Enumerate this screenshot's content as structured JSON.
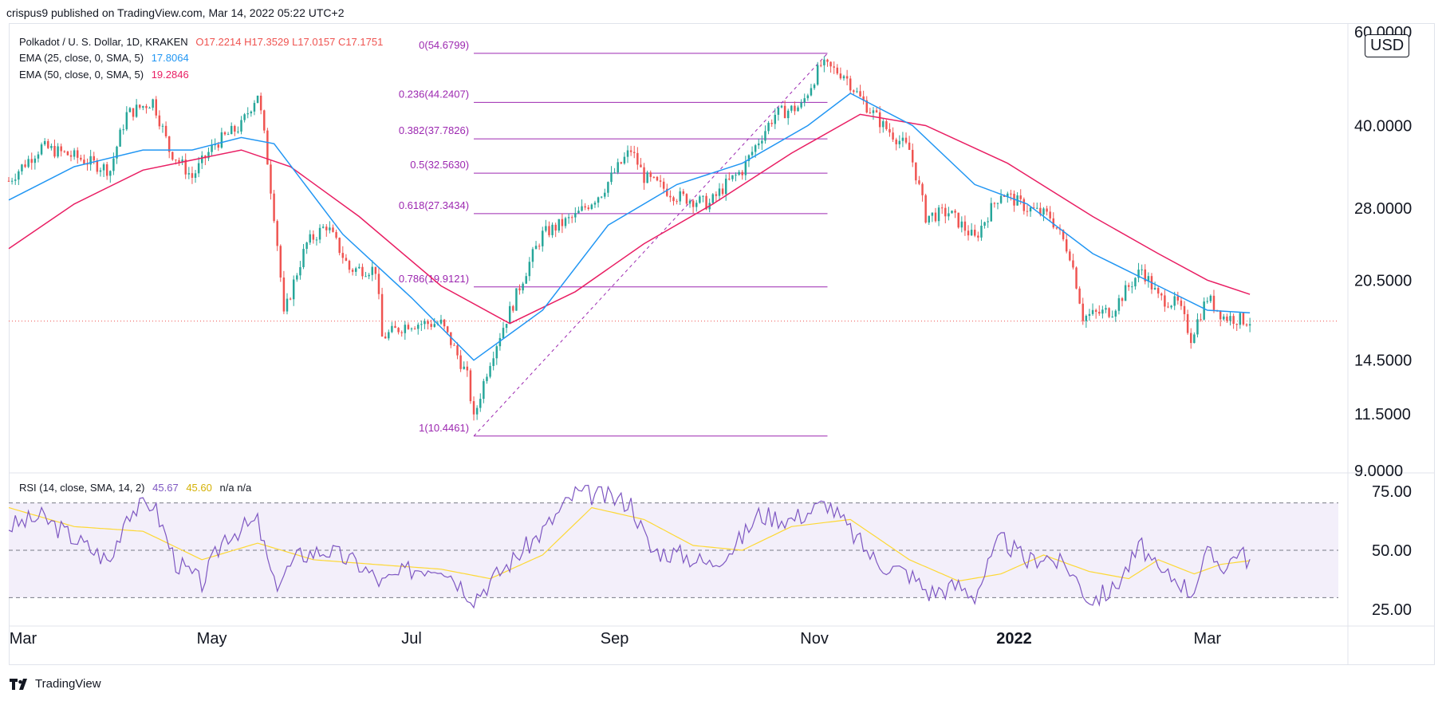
{
  "header": {
    "published_line": "crispus9 published on TradingView.com, Mar 14, 2022 05:22 UTC+2"
  },
  "main_legend": {
    "symbol": "Polkadot / U. S. Dollar, 1D, KRAKEN",
    "open": "O17.2214",
    "high": "H17.3529",
    "low": "L17.0157",
    "close": "C17.1751",
    "ema25_label": "EMA (25, close, 0, SMA, 5)",
    "ema25_value": "17.8064",
    "ema50_label": "EMA (50, close, 0, SMA, 5)",
    "ema50_value": "19.2846"
  },
  "rsi_legend": {
    "label": "RSI (14, close, SMA, 14, 2)",
    "rsi_value": "45.67",
    "ma_value": "45.60",
    "na1": "n/a",
    "na2": "n/a"
  },
  "currency_badge": "USD",
  "footer": {
    "brand": "TradingView"
  },
  "colors": {
    "up": "#26a69a",
    "down": "#ef5350",
    "ema25": "#2196f3",
    "ema50": "#e91e63",
    "fib": "#9c27b0",
    "rsi": "#7e57c2",
    "rsi_ma": "#fdd835",
    "rsi_band": "#f3effa"
  },
  "chart_data": [
    {
      "type": "candlestick",
      "title": "Polkadot / U. S. Dollar, 1D, KRAKEN",
      "scale": "log",
      "ylim": [
        9,
        60
      ],
      "y_ticks": [
        9.0,
        11.5,
        14.5,
        20.5,
        28.0,
        40.0,
        60.0
      ],
      "y_tick_labels": [
        "9.0000",
        "11.5000",
        "14.5000",
        "20.5000",
        "28.0000",
        "40.0000",
        "60.0000"
      ],
      "x_ticks": [
        "Mar",
        "May",
        "Jul",
        "Sep",
        "Nov",
        "2022",
        "Mar"
      ],
      "x_tick_dates": [
        "2021-03-01",
        "2021-05-01",
        "2021-07-01",
        "2021-09-01",
        "2021-11-01",
        "2022-01-01",
        "2022-03-01"
      ],
      "x_range": [
        "2021-02-28",
        "2022-04-10"
      ],
      "last_price": 17.1751,
      "close_path": [
        [
          "2021-02-28",
          31.5
        ],
        [
          "2021-03-10",
          36.5
        ],
        [
          "2021-03-20",
          35.0
        ],
        [
          "2021-03-31",
          33.0
        ],
        [
          "2021-04-05",
          42.0
        ],
        [
          "2021-04-13",
          44.5
        ],
        [
          "2021-04-18",
          36.0
        ],
        [
          "2021-04-25",
          32.0
        ],
        [
          "2021-05-02",
          37.0
        ],
        [
          "2021-05-10",
          40.0
        ],
        [
          "2021-05-15",
          46.0
        ],
        [
          "2021-05-19",
          30.5
        ],
        [
          "2021-05-23",
          17.5
        ],
        [
          "2021-05-30",
          24.0
        ],
        [
          "2021-06-05",
          26.0
        ],
        [
          "2021-06-12",
          21.5
        ],
        [
          "2021-06-20",
          21.5
        ],
        [
          "2021-06-22",
          16.0
        ],
        [
          "2021-06-30",
          17.0
        ],
        [
          "2021-07-10",
          17.0
        ],
        [
          "2021-07-18",
          13.5
        ],
        [
          "2021-07-20",
          11.2
        ],
        [
          "2021-07-25",
          14.5
        ],
        [
          "2021-08-01",
          18.5
        ],
        [
          "2021-08-10",
          25.0
        ],
        [
          "2021-08-20",
          27.0
        ],
        [
          "2021-08-28",
          30.0
        ],
        [
          "2021-09-06",
          36.0
        ],
        [
          "2021-09-10",
          32.0
        ],
        [
          "2021-09-20",
          29.5
        ],
        [
          "2021-09-30",
          28.5
        ],
        [
          "2021-10-05",
          31.0
        ],
        [
          "2021-10-10",
          33.0
        ],
        [
          "2021-10-20",
          42.0
        ],
        [
          "2021-10-28",
          43.5
        ],
        [
          "2021-11-03",
          52.0
        ],
        [
          "2021-11-10",
          50.0
        ],
        [
          "2021-11-15",
          45.0
        ],
        [
          "2021-11-22",
          40.0
        ],
        [
          "2021-11-30",
          36.0
        ],
        [
          "2021-12-05",
          27.0
        ],
        [
          "2021-12-12",
          27.5
        ],
        [
          "2021-12-20",
          24.5
        ],
        [
          "2021-12-28",
          30.0
        ],
        [
          "2022-01-05",
          28.0
        ],
        [
          "2022-01-12",
          27.0
        ],
        [
          "2022-01-18",
          23.0
        ],
        [
          "2022-01-22",
          17.5
        ],
        [
          "2022-01-31",
          18.0
        ],
        [
          "2022-02-09",
          21.5
        ],
        [
          "2022-02-14",
          19.0
        ],
        [
          "2022-02-20",
          18.5
        ],
        [
          "2022-02-24",
          16.0
        ],
        [
          "2022-03-01",
          19.0
        ],
        [
          "2022-03-06",
          17.5
        ],
        [
          "2022-03-14",
          17.1751
        ]
      ],
      "ema25_path": [
        [
          "2021-02-28",
          29.0
        ],
        [
          "2021-03-20",
          33.5
        ],
        [
          "2021-04-10",
          36.0
        ],
        [
          "2021-04-25",
          36.0
        ],
        [
          "2021-05-10",
          38.0
        ],
        [
          "2021-05-20",
          37.0
        ],
        [
          "2021-06-10",
          25.0
        ],
        [
          "2021-07-01",
          19.0
        ],
        [
          "2021-07-20",
          14.5
        ],
        [
          "2021-08-10",
          18.0
        ],
        [
          "2021-08-30",
          26.0
        ],
        [
          "2021-09-20",
          31.0
        ],
        [
          "2021-10-10",
          34.0
        ],
        [
          "2021-10-30",
          40.0
        ],
        [
          "2021-11-12",
          46.0
        ],
        [
          "2021-12-01",
          40.0
        ],
        [
          "2021-12-20",
          31.0
        ],
        [
          "2022-01-05",
          28.5
        ],
        [
          "2022-01-25",
          23.0
        ],
        [
          "2022-02-14",
          20.0
        ],
        [
          "2022-03-01",
          18.0
        ],
        [
          "2022-03-14",
          17.8064
        ]
      ],
      "ema50_path": [
        [
          "2021-02-28",
          23.5
        ],
        [
          "2021-03-20",
          28.5
        ],
        [
          "2021-04-10",
          33.0
        ],
        [
          "2021-05-10",
          36.0
        ],
        [
          "2021-05-25",
          33.5
        ],
        [
          "2021-06-15",
          27.0
        ],
        [
          "2021-07-10",
          20.0
        ],
        [
          "2021-07-31",
          17.0
        ],
        [
          "2021-08-20",
          19.5
        ],
        [
          "2021-09-10",
          24.0
        ],
        [
          "2021-10-01",
          28.5
        ],
        [
          "2021-10-25",
          35.5
        ],
        [
          "2021-11-15",
          42.0
        ],
        [
          "2021-12-05",
          40.0
        ],
        [
          "2021-12-30",
          34.0
        ],
        [
          "2022-01-25",
          27.0
        ],
        [
          "2022-02-14",
          23.0
        ],
        [
          "2022-03-01",
          20.5
        ],
        [
          "2022-03-14",
          19.2846
        ]
      ],
      "fibonacci": {
        "from_date": "2021-07-20",
        "to_date": "2021-11-05",
        "levels": [
          {
            "label": "0(54.6799)",
            "price": 54.6799
          },
          {
            "label": "0.236(44.2407)",
            "price": 44.2407
          },
          {
            "label": "0.382(37.7826)",
            "price": 37.7826
          },
          {
            "label": "0.5(32.5630)",
            "price": 32.563
          },
          {
            "label": "0.618(27.3434)",
            "price": 27.3434
          },
          {
            "label": "0.786(19.9121)",
            "price": 19.9121
          },
          {
            "label": "1(10.4461)",
            "price": 10.4461
          }
        ]
      }
    },
    {
      "type": "line",
      "title": "RSI (14, close, SMA, 14, 2)",
      "ylim": [
        20,
        82
      ],
      "y_ticks": [
        25,
        50,
        75
      ],
      "y_tick_labels": [
        "25.00",
        "50.00",
        "75.00"
      ],
      "bands": [
        30,
        50,
        70
      ],
      "series": [
        {
          "name": "RSI",
          "points": [
            [
              "2021-02-28",
              60
            ],
            [
              "2021-03-10",
              64
            ],
            [
              "2021-03-20",
              55
            ],
            [
              "2021-03-31",
              45
            ],
            [
              "2021-04-05",
              66
            ],
            [
              "2021-04-13",
              70
            ],
            [
              "2021-04-20",
              45
            ],
            [
              "2021-04-28",
              36
            ],
            [
              "2021-05-05",
              56
            ],
            [
              "2021-05-15",
              62
            ],
            [
              "2021-05-20",
              35
            ],
            [
              "2021-05-28",
              48
            ],
            [
              "2021-06-05",
              50
            ],
            [
              "2021-06-15",
              44
            ],
            [
              "2021-06-22",
              36
            ],
            [
              "2021-07-01",
              42
            ],
            [
              "2021-07-10",
              44
            ],
            [
              "2021-07-20",
              30
            ],
            [
              "2021-08-01",
              46
            ],
            [
              "2021-08-10",
              58
            ],
            [
              "2021-08-20",
              74
            ],
            [
              "2021-08-28",
              73
            ],
            [
              "2021-09-06",
              70
            ],
            [
              "2021-09-12",
              50
            ],
            [
              "2021-09-22",
              48
            ],
            [
              "2021-09-30",
              44
            ],
            [
              "2021-10-08",
              52
            ],
            [
              "2021-10-15",
              65
            ],
            [
              "2021-10-25",
              63
            ],
            [
              "2021-11-05",
              70
            ],
            [
              "2021-11-12",
              58
            ],
            [
              "2021-11-20",
              45
            ],
            [
              "2021-11-30",
              40
            ],
            [
              "2021-12-06",
              32
            ],
            [
              "2021-12-15",
              35
            ],
            [
              "2021-12-20",
              31
            ],
            [
              "2021-12-28",
              55
            ],
            [
              "2022-01-05",
              45
            ],
            [
              "2022-01-10",
              48
            ],
            [
              "2022-01-18",
              42
            ],
            [
              "2022-01-24",
              29
            ],
            [
              "2022-01-31",
              33
            ],
            [
              "2022-02-09",
              52
            ],
            [
              "2022-02-14",
              40
            ],
            [
              "2022-02-20",
              38
            ],
            [
              "2022-02-24",
              32
            ],
            [
              "2022-03-01",
              48
            ],
            [
              "2022-03-07",
              43
            ],
            [
              "2022-03-10",
              50
            ],
            [
              "2022-03-14",
              45.67
            ]
          ]
        },
        {
          "name": "RSI-based MA",
          "points": [
            [
              "2021-02-28",
              68
            ],
            [
              "2021-03-20",
              60
            ],
            [
              "2021-04-10",
              58
            ],
            [
              "2021-04-28",
              46
            ],
            [
              "2021-05-15",
              53
            ],
            [
              "2021-06-01",
              46
            ],
            [
              "2021-06-20",
              44
            ],
            [
              "2021-07-10",
              42
            ],
            [
              "2021-07-25",
              38
            ],
            [
              "2021-08-10",
              48
            ],
            [
              "2021-08-25",
              68
            ],
            [
              "2021-09-10",
              63
            ],
            [
              "2021-09-25",
              52
            ],
            [
              "2021-10-10",
              50
            ],
            [
              "2021-10-25",
              60
            ],
            [
              "2021-11-12",
              63
            ],
            [
              "2021-11-30",
              46
            ],
            [
              "2021-12-15",
              37
            ],
            [
              "2021-12-28",
              40
            ],
            [
              "2022-01-10",
              48
            ],
            [
              "2022-01-24",
              41
            ],
            [
              "2022-02-05",
              38
            ],
            [
              "2022-02-14",
              46
            ],
            [
              "2022-02-25",
              40
            ],
            [
              "2022-03-05",
              44
            ],
            [
              "2022-03-14",
              45.6
            ]
          ]
        }
      ]
    }
  ]
}
